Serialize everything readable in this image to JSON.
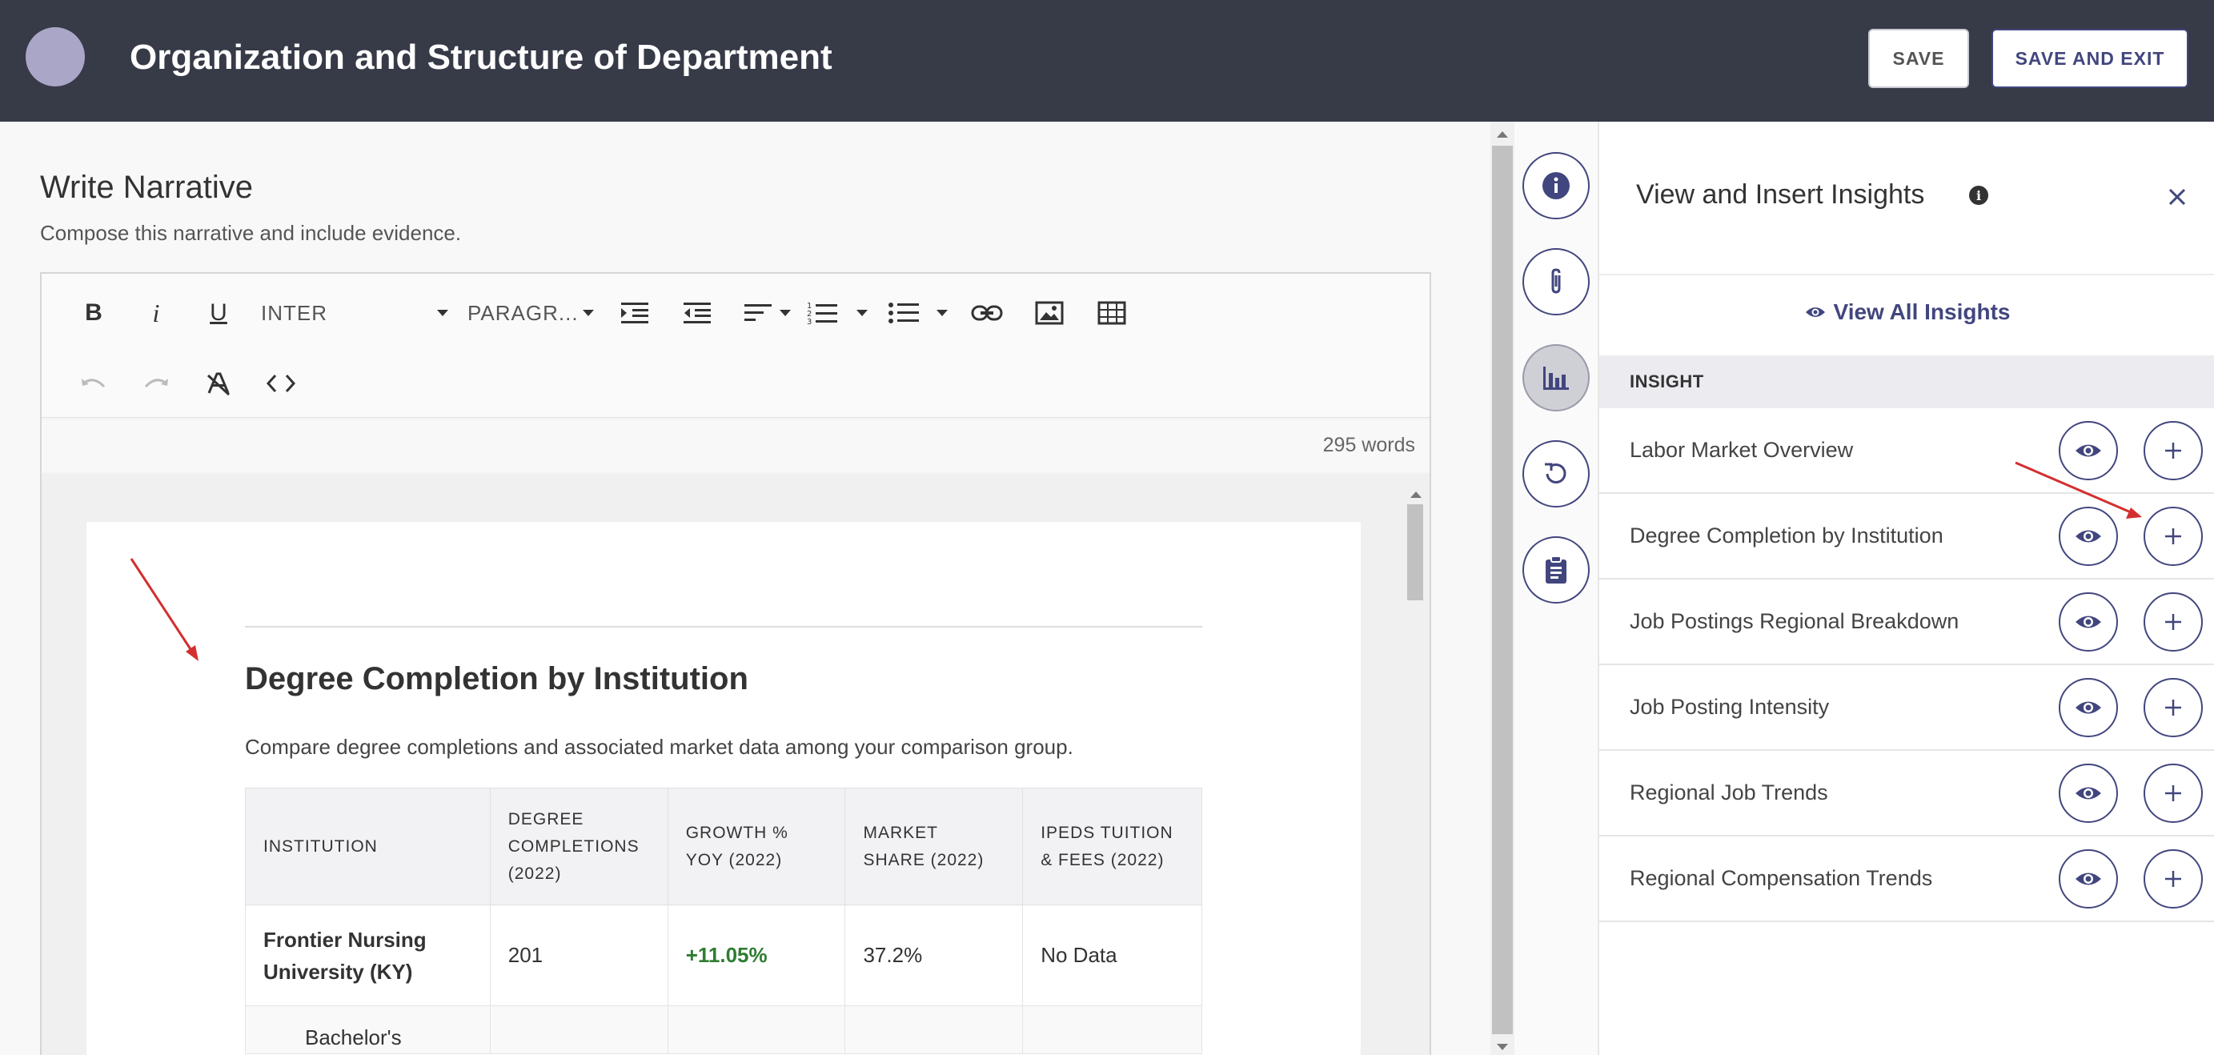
{
  "header": {
    "title": "Organization and Structure of Department",
    "save_label": "SAVE",
    "save_exit_label": "SAVE AND EXIT"
  },
  "narrative": {
    "title": "Write Narrative",
    "subtitle": "Compose this narrative and include evidence."
  },
  "toolbar": {
    "font_family": "INTER",
    "block_format": "PARAGR...",
    "row1_icons": [
      "bold-icon",
      "italic-icon",
      "underline-icon",
      "indent-icon",
      "outdent-icon",
      "align-icon",
      "numbered-list-icon",
      "bullet-list-icon",
      "link-icon",
      "image-icon",
      "table-icon"
    ],
    "row2_icons": [
      "undo-icon",
      "redo-icon",
      "clear-formatting-icon",
      "code-view-icon"
    ],
    "word_count": "295 words"
  },
  "document": {
    "heading": "Degree Completion by Institution",
    "paragraph": "Compare degree completions and associated market data among your comparison group.",
    "table": {
      "headers": [
        "INSTITUTION",
        "DEGREE COMPLETIONS (2022)",
        "GROWTH % YOY (2022)",
        "MARKET SHARE (2022)",
        "IPEDS TUITION & FEES (2022)"
      ],
      "rows": [
        [
          "Frontier Nursing University (KY)",
          "201",
          "+11.05%",
          "37.2%",
          "No Data"
        ]
      ],
      "partial_row": "Bachelor's"
    }
  },
  "rail": {
    "icons": [
      "info-icon",
      "paperclip-icon",
      "bar-chart-icon",
      "history-icon",
      "clipboard-icon"
    ],
    "active": "bar-chart-icon"
  },
  "panel": {
    "title": "View and Insert Insights",
    "view_all_label": "View All Insights",
    "column_header": "INSIGHT",
    "insights": [
      "Labor Market Overview",
      "Degree Completion by Institution",
      "Job Postings Regional Breakdown",
      "Job Posting Intensity",
      "Regional Job Trends",
      "Regional Compensation Trends"
    ]
  },
  "colors": {
    "header_bg": "#373a47",
    "accent": "#42467e",
    "growth_positive": "#2e7d32",
    "annotation_arrow": "#d32f2f"
  }
}
